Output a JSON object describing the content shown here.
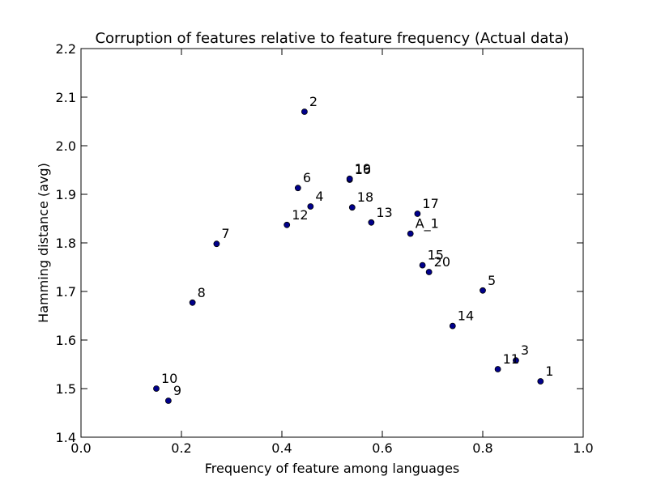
{
  "chart_data": {
    "type": "scatter",
    "title": "Corruption of features relative to feature frequency (Actual data)",
    "xlabel": "Frequency of feature among languages",
    "ylabel": "Hamming distance (avg)",
    "xlim": [
      0.0,
      1.0
    ],
    "ylim": [
      1.4,
      2.2
    ],
    "xticks": [
      "0.0",
      "0.2",
      "0.4",
      "0.6",
      "0.8",
      "1.0"
    ],
    "yticks": [
      "1.4",
      "1.5",
      "1.6",
      "1.7",
      "1.8",
      "1.9",
      "2.0",
      "2.1",
      "2.2"
    ],
    "grid": false,
    "marker_color": "#00008b",
    "points": [
      {
        "label": "1",
        "x": 0.915,
        "y": 1.515
      },
      {
        "label": "2",
        "x": 0.445,
        "y": 2.07
      },
      {
        "label": "3",
        "x": 0.866,
        "y": 1.558
      },
      {
        "label": "4",
        "x": 0.457,
        "y": 1.875
      },
      {
        "label": "5",
        "x": 0.8,
        "y": 1.702
      },
      {
        "label": "6",
        "x": 0.432,
        "y": 1.913
      },
      {
        "label": "7",
        "x": 0.27,
        "y": 1.798
      },
      {
        "label": "8",
        "x": 0.222,
        "y": 1.677
      },
      {
        "label": "9",
        "x": 0.174,
        "y": 1.475
      },
      {
        "label": "10",
        "x": 0.15,
        "y": 1.5
      },
      {
        "label": "11",
        "x": 0.83,
        "y": 1.54
      },
      {
        "label": "12",
        "x": 0.41,
        "y": 1.837
      },
      {
        "label": "13",
        "x": 0.578,
        "y": 1.842
      },
      {
        "label": "14",
        "x": 0.74,
        "y": 1.629
      },
      {
        "label": "15",
        "x": 0.68,
        "y": 1.754
      },
      {
        "label": "16",
        "x": 0.535,
        "y": 1.93
      },
      {
        "label": "17",
        "x": 0.67,
        "y": 1.86
      },
      {
        "label": "18",
        "x": 0.54,
        "y": 1.873
      },
      {
        "label": "19",
        "x": 0.535,
        "y": 1.932
      },
      {
        "label": "20",
        "x": 0.693,
        "y": 1.74
      },
      {
        "label": "A_1",
        "x": 0.656,
        "y": 1.819
      }
    ]
  }
}
